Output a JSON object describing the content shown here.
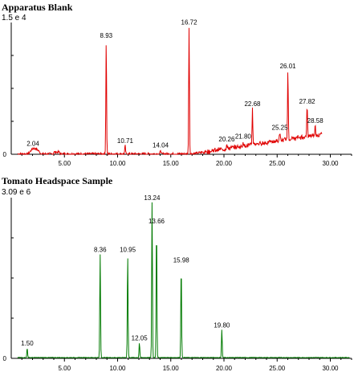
{
  "chart_data": [
    {
      "type": "line",
      "title": "Apparatus Blank",
      "scale_label": "1.5 e 4",
      "color": "#e00000",
      "xlim": [
        0,
        32
      ],
      "ylim": [
        0,
        1.5
      ],
      "x_ticks": [
        "5.00",
        "10.00",
        "15.00",
        "20.00",
        "25.00",
        "30.00"
      ],
      "x_tick_values": [
        5,
        10,
        15,
        20,
        25,
        30
      ],
      "y_ticks": [
        0
      ],
      "y_tick_labels": [
        "0"
      ],
      "peaks": [
        {
          "label": "2.04",
          "x": 2.04,
          "y": 0.07
        },
        {
          "label": "8.93",
          "x": 8.93,
          "y": 1.3
        },
        {
          "label": "10.71",
          "x": 10.71,
          "y": 0.1
        },
        {
          "label": "14.04",
          "x": 14.04,
          "y": 0.05
        },
        {
          "label": "16.72",
          "x": 16.72,
          "y": 1.45
        },
        {
          "label": "20.26",
          "x": 20.26,
          "y": 0.12
        },
        {
          "label": "21.80",
          "x": 21.8,
          "y": 0.15
        },
        {
          "label": "22.68",
          "x": 22.68,
          "y": 0.52
        },
        {
          "label": "25.25",
          "x": 25.25,
          "y": 0.25
        },
        {
          "label": "26.01",
          "x": 26.01,
          "y": 0.95
        },
        {
          "label": "27.82",
          "x": 27.82,
          "y": 0.55
        },
        {
          "label": "28.58",
          "x": 28.58,
          "y": 0.33
        }
      ]
    },
    {
      "type": "line",
      "title": "Tomato Headspace Sample",
      "scale_label": "3.09 e 6",
      "color": "#007a00",
      "xlim": [
        0,
        32
      ],
      "ylim": [
        0,
        3.09
      ],
      "x_ticks": [
        "5.00",
        "10.00",
        "15.00",
        "20.00",
        "25.00",
        "30.00"
      ],
      "x_tick_values": [
        5,
        10,
        15,
        20,
        25,
        30
      ],
      "y_ticks": [
        0
      ],
      "y_tick_labels": [
        "0"
      ],
      "peaks": [
        {
          "label": "1.50",
          "x": 1.5,
          "y": 0.2
        },
        {
          "label": "8.36",
          "x": 8.36,
          "y": 2.0
        },
        {
          "label": "10.95",
          "x": 10.95,
          "y": 2.0
        },
        {
          "label": "12.05",
          "x": 12.05,
          "y": 0.3
        },
        {
          "label": "13.24",
          "x": 13.24,
          "y": 3.0
        },
        {
          "label": "13.66",
          "x": 13.66,
          "y": 2.55
        },
        {
          "label": "15.98",
          "x": 15.98,
          "y": 1.8
        },
        {
          "label": "19.80",
          "x": 19.8,
          "y": 0.55
        }
      ]
    }
  ]
}
